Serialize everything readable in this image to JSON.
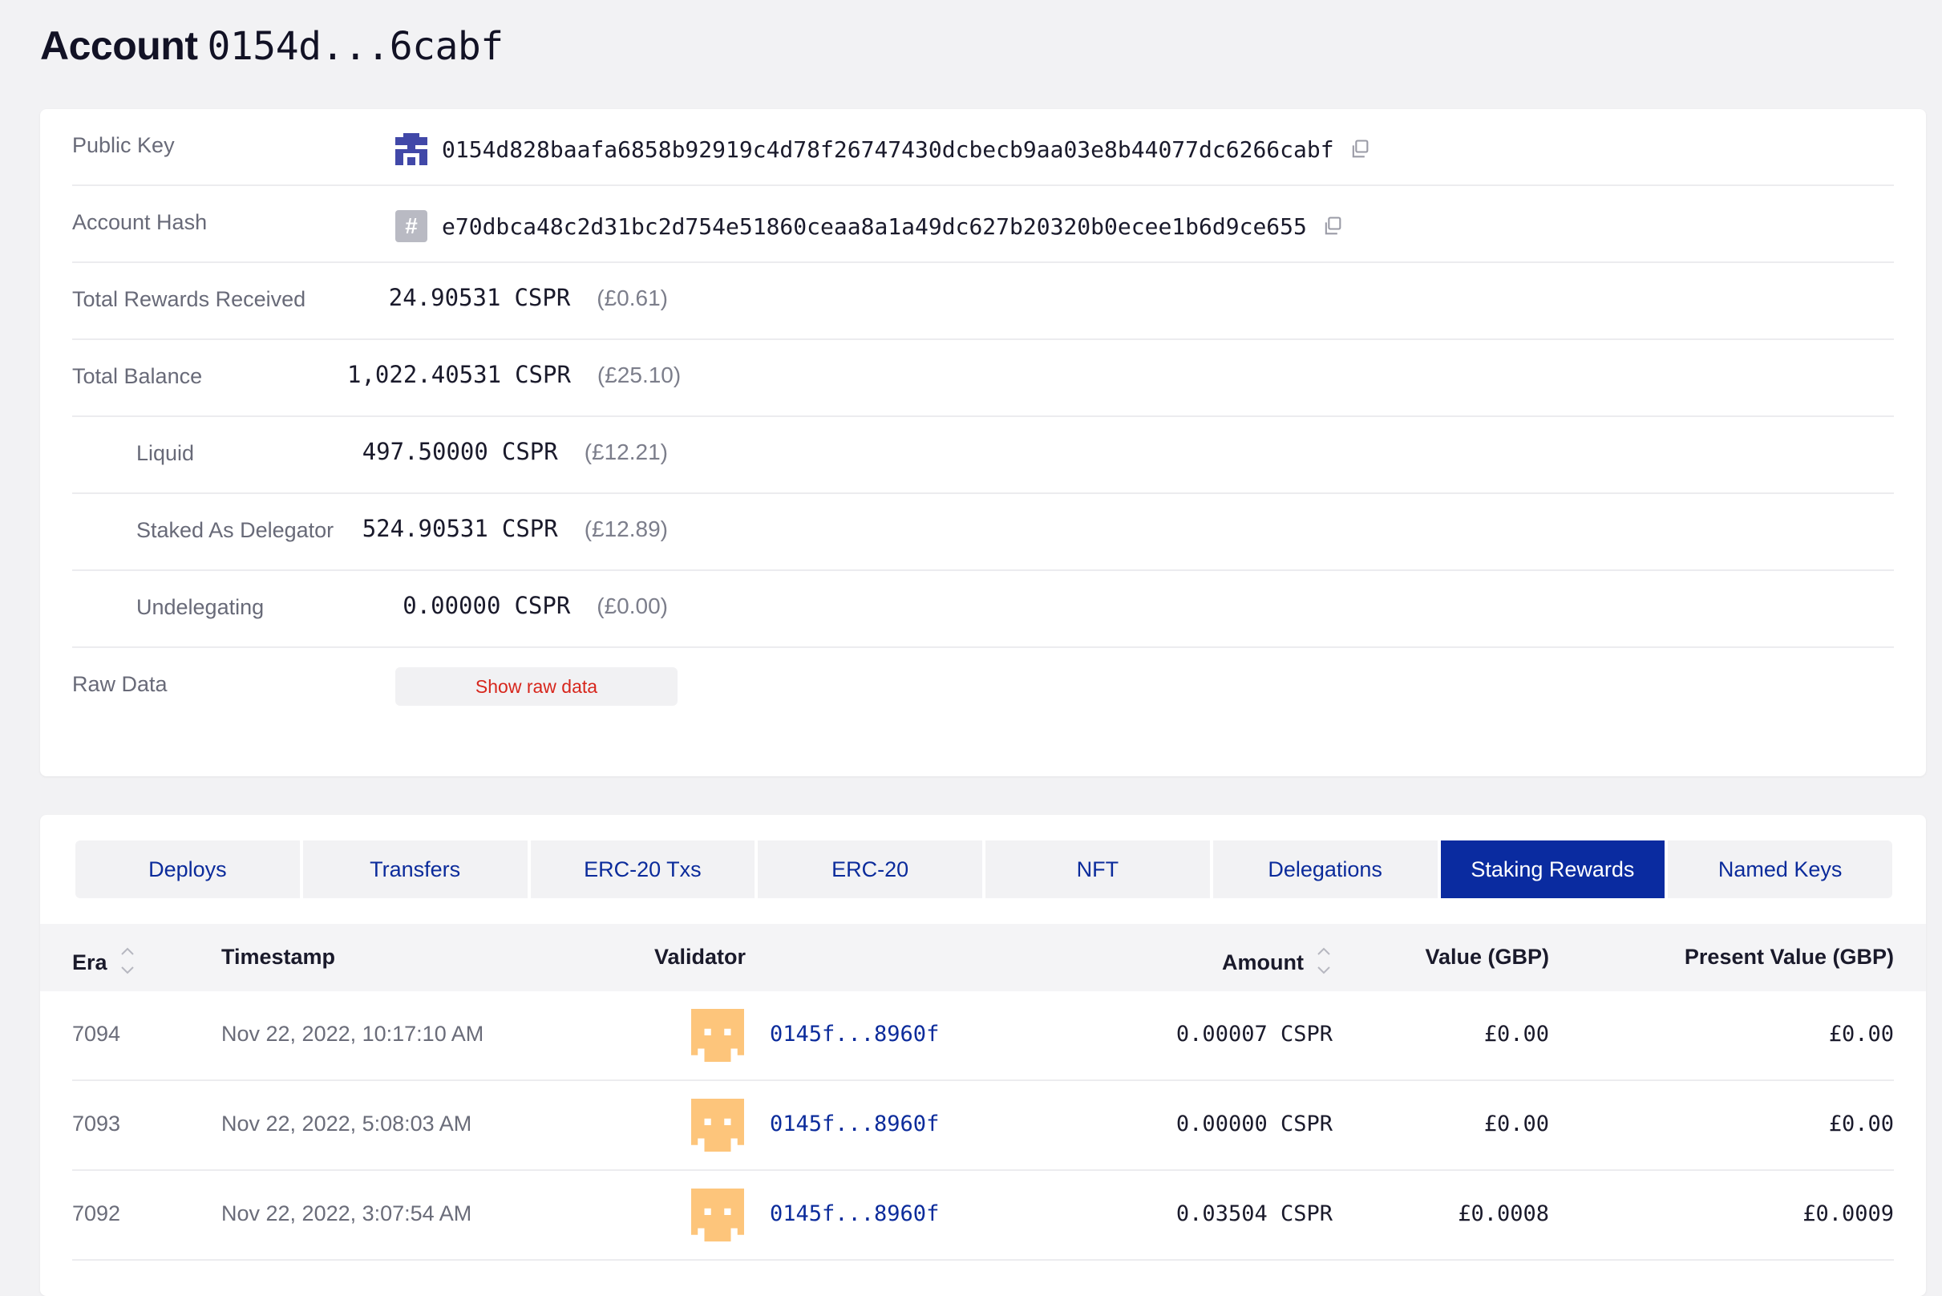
{
  "header": {
    "title": "Account",
    "hash": "0154d...6cabf"
  },
  "info": {
    "public_key": {
      "label": "Public Key",
      "value": "0154d828baafa6858b92919c4d78f26747430dcbecb9aa03e8b44077dc6266cabf"
    },
    "account_hash": {
      "label": "Account Hash",
      "value": "e70dbca48c2d31bc2d754e51860ceaa8a1a49dc627b20320b0ecee1b6d9ce655",
      "badge": "#"
    },
    "total_rewards": {
      "label": "Total Rewards Received",
      "amount": "24.90531",
      "unit": "CSPR",
      "fiat": "(£0.61)"
    },
    "total_balance": {
      "label": "Total Balance",
      "amount": "1,022.40531",
      "unit": "CSPR",
      "fiat": "(£25.10)"
    },
    "liquid": {
      "label": "Liquid",
      "amount": "497.50000",
      "unit": "CSPR",
      "fiat": "(£12.21)"
    },
    "staked": {
      "label": "Staked As Delegator",
      "amount": "524.90531",
      "unit": "CSPR",
      "fiat": "(£12.89)"
    },
    "undelegating": {
      "label": "Undelegating",
      "amount": "0.00000",
      "unit": "CSPR",
      "fiat": "(£0.00)"
    },
    "raw_data": {
      "label": "Raw Data",
      "button": "Show raw data"
    }
  },
  "tabs": [
    {
      "label": "Deploys",
      "active": false
    },
    {
      "label": "Transfers",
      "active": false
    },
    {
      "label": "ERC-20 Txs",
      "active": false
    },
    {
      "label": "ERC-20",
      "active": false
    },
    {
      "label": "NFT",
      "active": false
    },
    {
      "label": "Delegations",
      "active": false
    },
    {
      "label": "Staking Rewards",
      "active": true
    },
    {
      "label": "Named Keys",
      "active": false
    }
  ],
  "table": {
    "columns": {
      "era": "Era",
      "timestamp": "Timestamp",
      "validator": "Validator",
      "amount": "Amount",
      "value": "Value (GBP)",
      "present_value": "Present Value (GBP)"
    },
    "rows": [
      {
        "era": "7094",
        "timestamp": "Nov 22, 2022, 10:17:10 AM",
        "validator": "0145f...8960f",
        "amount": "0.00007 CSPR",
        "value": "£0.00",
        "present_value": "£0.00"
      },
      {
        "era": "7093",
        "timestamp": "Nov 22, 2022, 5:08:03 AM",
        "validator": "0145f...8960f",
        "amount": "0.00000 CSPR",
        "value": "£0.00",
        "present_value": "£0.00"
      },
      {
        "era": "7092",
        "timestamp": "Nov 22, 2022, 3:07:54 AM",
        "validator": "0145f...8960f",
        "amount": "0.03504 CSPR",
        "value": "£0.0008",
        "present_value": "£0.0009"
      }
    ]
  },
  "colors": {
    "accent": "#0a2ba0",
    "link": "#0b2b9b",
    "raw_button_text": "#d7261c",
    "validator_avatar": "#fdc57b",
    "public_key_identicon": "#4148a8"
  },
  "icons": {
    "copy": "copy-icon",
    "sort": "sort-icon",
    "identicon": "identicon",
    "hash_badge": "hash-icon"
  }
}
